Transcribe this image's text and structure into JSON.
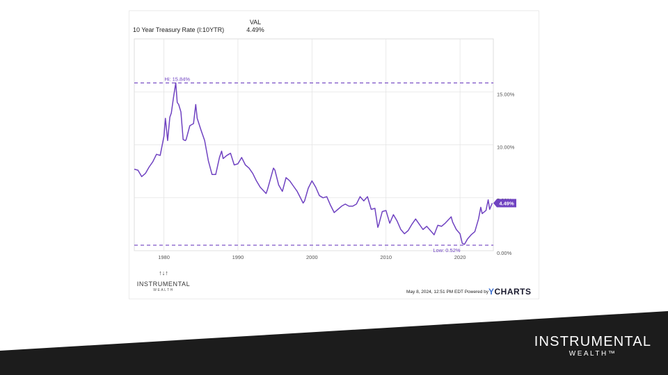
{
  "slide": {
    "background": "#ffffff",
    "banner_color": "#1c1c1c"
  },
  "header": {
    "series_label": "10 Year Treasury Rate (I:10YTR)",
    "val_header": "VAL",
    "val_value": "4.49%"
  },
  "footer": {
    "timestamp": "May 8, 2024, 12:51 PM EDT Powered by",
    "provider": "CHARTS",
    "provider_mark": "Y"
  },
  "chart_logo": {
    "name": "INSTRUMENTAL",
    "sub": "WEALTH"
  },
  "brand": {
    "name": "INSTRUMENTAL",
    "sub": "WEALTH™"
  },
  "chart_data": {
    "type": "line",
    "title": "",
    "xlabel": "",
    "ylabel": "",
    "xlim": [
      1976,
      2024.5
    ],
    "ylim": [
      0,
      20
    ],
    "x_ticks": [
      1980,
      1990,
      2000,
      2010,
      2020
    ],
    "x_tick_labels": [
      "1980",
      "1990",
      "2000",
      "2010",
      "2020"
    ],
    "y_ticks": [
      0,
      5,
      10,
      15
    ],
    "y_tick_labels": [
      "0.00%",
      "5.00%",
      "10.00%",
      "15.00%"
    ],
    "grid": true,
    "line_color": "#6f42c1",
    "series": [
      {
        "x": [
          1976.0,
          1976.5,
          1977.0,
          1977.5,
          1978.0,
          1978.5,
          1979.0,
          1979.5,
          1980.0,
          1980.2,
          1980.5,
          1980.8,
          1981.0,
          1981.3,
          1981.6,
          1981.8,
          1982.0,
          1982.3,
          1982.6,
          1982.9,
          1983.0,
          1983.5,
          1984.0,
          1984.3,
          1984.5,
          1985.0,
          1985.5,
          1986.0,
          1986.5,
          1987.0,
          1987.5,
          1987.8,
          1988.0,
          1988.5,
          1989.0,
          1989.5,
          1990.0,
          1990.5,
          1991.0,
          1991.5,
          1992.0,
          1992.5,
          1993.0,
          1993.8,
          1994.0,
          1994.8,
          1995.0,
          1995.5,
          1996.0,
          1996.5,
          1997.0,
          1997.5,
          1998.0,
          1998.8,
          1999.0,
          1999.5,
          2000.0,
          2000.5,
          2001.0,
          2001.5,
          2002.0,
          2002.5,
          2003.0,
          2003.5,
          2004.0,
          2004.5,
          2005.0,
          2005.5,
          2006.0,
          2006.5,
          2007.0,
          2007.5,
          2008.0,
          2008.5,
          2008.9,
          2009.0,
          2009.5,
          2010.0,
          2010.5,
          2011.0,
          2011.5,
          2012.0,
          2012.5,
          2013.0,
          2013.5,
          2014.0,
          2014.5,
          2015.0,
          2015.5,
          2016.0,
          2016.5,
          2017.0,
          2017.5,
          2018.0,
          2018.8,
          2019.0,
          2019.5,
          2020.0,
          2020.3,
          2020.6,
          2021.0,
          2021.5,
          2022.0,
          2022.5,
          2022.8,
          2023.0,
          2023.5,
          2023.8,
          2024.0,
          2024.35
        ],
        "y": [
          7.7,
          7.6,
          7.0,
          7.3,
          7.9,
          8.4,
          9.1,
          9.0,
          10.8,
          12.5,
          10.4,
          12.6,
          13.0,
          14.5,
          15.84,
          14.0,
          13.8,
          13.1,
          10.5,
          10.4,
          10.5,
          11.8,
          12.0,
          13.8,
          12.5,
          11.4,
          10.4,
          8.5,
          7.2,
          7.2,
          8.8,
          9.4,
          8.7,
          9.0,
          9.2,
          8.1,
          8.2,
          8.8,
          8.1,
          7.8,
          7.3,
          6.6,
          6.0,
          5.4,
          5.8,
          7.8,
          7.6,
          6.2,
          5.6,
          6.9,
          6.6,
          6.1,
          5.6,
          4.5,
          4.7,
          5.9,
          6.6,
          6.0,
          5.2,
          5.0,
          5.1,
          4.3,
          3.6,
          3.9,
          4.2,
          4.4,
          4.2,
          4.2,
          4.4,
          5.1,
          4.7,
          5.1,
          3.9,
          4.0,
          2.2,
          2.4,
          3.7,
          3.8,
          2.6,
          3.4,
          2.8,
          2.0,
          1.6,
          1.9,
          2.5,
          3.0,
          2.5,
          2.0,
          2.3,
          1.9,
          1.5,
          2.4,
          2.3,
          2.6,
          3.2,
          2.7,
          2.0,
          1.6,
          0.7,
          0.6,
          1.1,
          1.5,
          1.8,
          3.0,
          4.1,
          3.5,
          3.8,
          4.8,
          3.9,
          4.49
        ]
      }
    ],
    "annotations": [
      {
        "type": "reference_line",
        "y": 15.84,
        "label": "Hi: 15.84%"
      },
      {
        "type": "reference_line",
        "y": 0.52,
        "label": "Low: 0.52%"
      }
    ],
    "last_value_label": "4.49%"
  }
}
